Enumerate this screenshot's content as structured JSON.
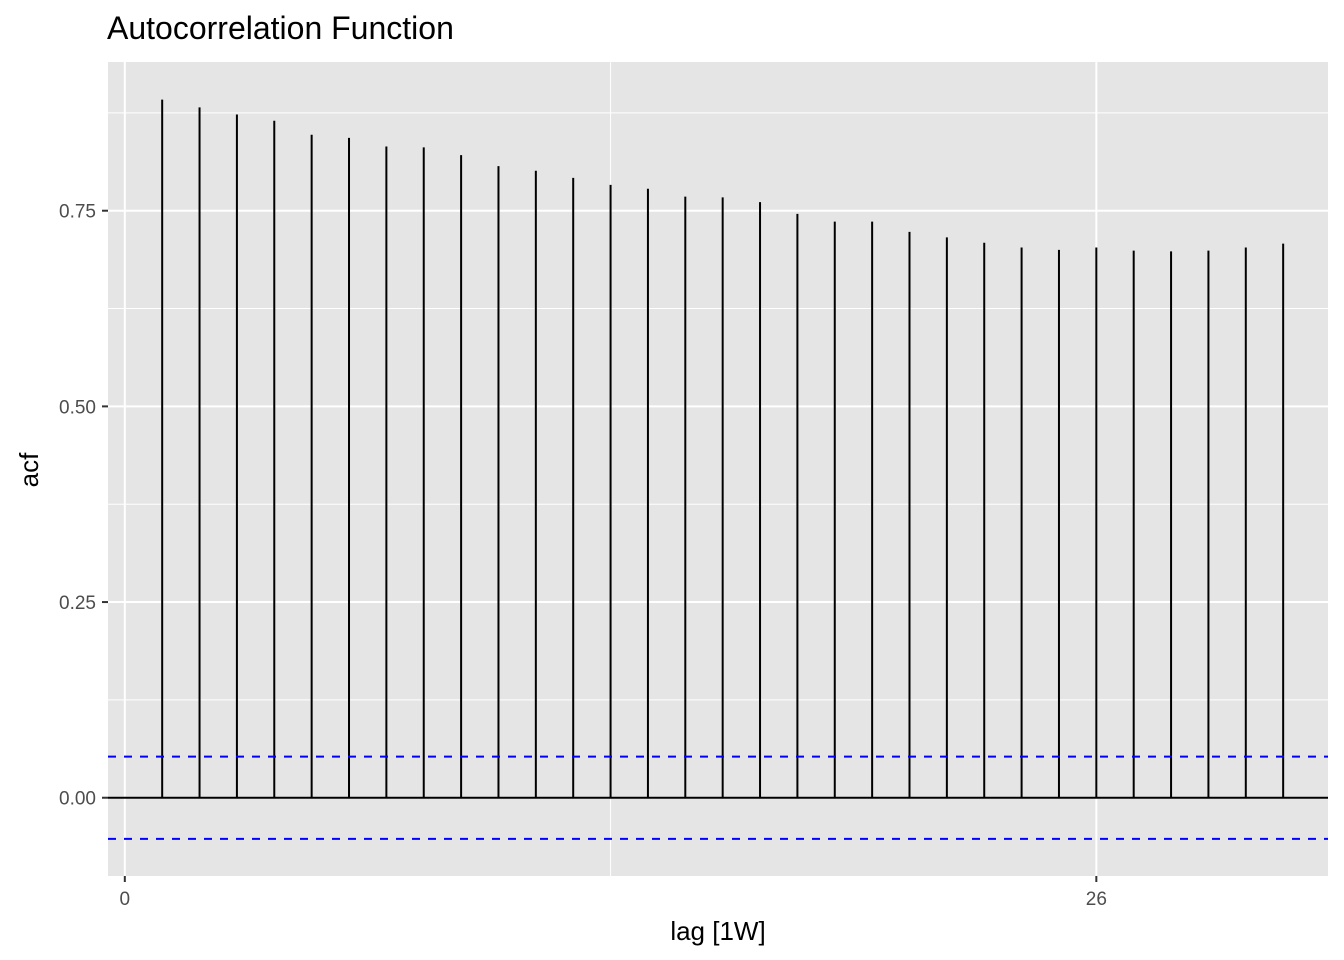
{
  "chart_data": {
    "type": "bar",
    "subtype": "acf-lollipop",
    "title": "Autocorrelation Function",
    "xlabel": "lag [1W]",
    "ylabel": "acf",
    "x": [
      1,
      2,
      3,
      4,
      5,
      6,
      7,
      8,
      9,
      10,
      11,
      12,
      13,
      14,
      15,
      16,
      17,
      18,
      19,
      20,
      21,
      22,
      23,
      24,
      25,
      26,
      27,
      28,
      29,
      30,
      31
    ],
    "values": [
      0.892,
      0.882,
      0.873,
      0.865,
      0.847,
      0.843,
      0.832,
      0.831,
      0.821,
      0.807,
      0.801,
      0.792,
      0.783,
      0.778,
      0.768,
      0.767,
      0.761,
      0.746,
      0.736,
      0.736,
      0.723,
      0.716,
      0.709,
      0.703,
      0.7,
      0.703,
      0.699,
      0.698,
      0.699,
      0.703,
      0.708
    ],
    "confidence_bounds": [
      0.0525,
      -0.0525
    ],
    "xlim": [
      -0.45,
      32.2
    ],
    "ylim": [
      -0.1,
      0.94
    ],
    "x_ticks": [
      0,
      26
    ],
    "x_tick_labels": [
      "0",
      "26"
    ],
    "y_ticks": [
      0.0,
      0.25,
      0.5,
      0.75
    ],
    "y_tick_labels": [
      "0.00",
      "0.25",
      "0.50",
      "0.75"
    ],
    "grid": true,
    "colors": {
      "panel_background": "#e5e5e5",
      "grid": "#ffffff",
      "bars": "#000000",
      "confidence_lines": "#0000ff"
    }
  }
}
